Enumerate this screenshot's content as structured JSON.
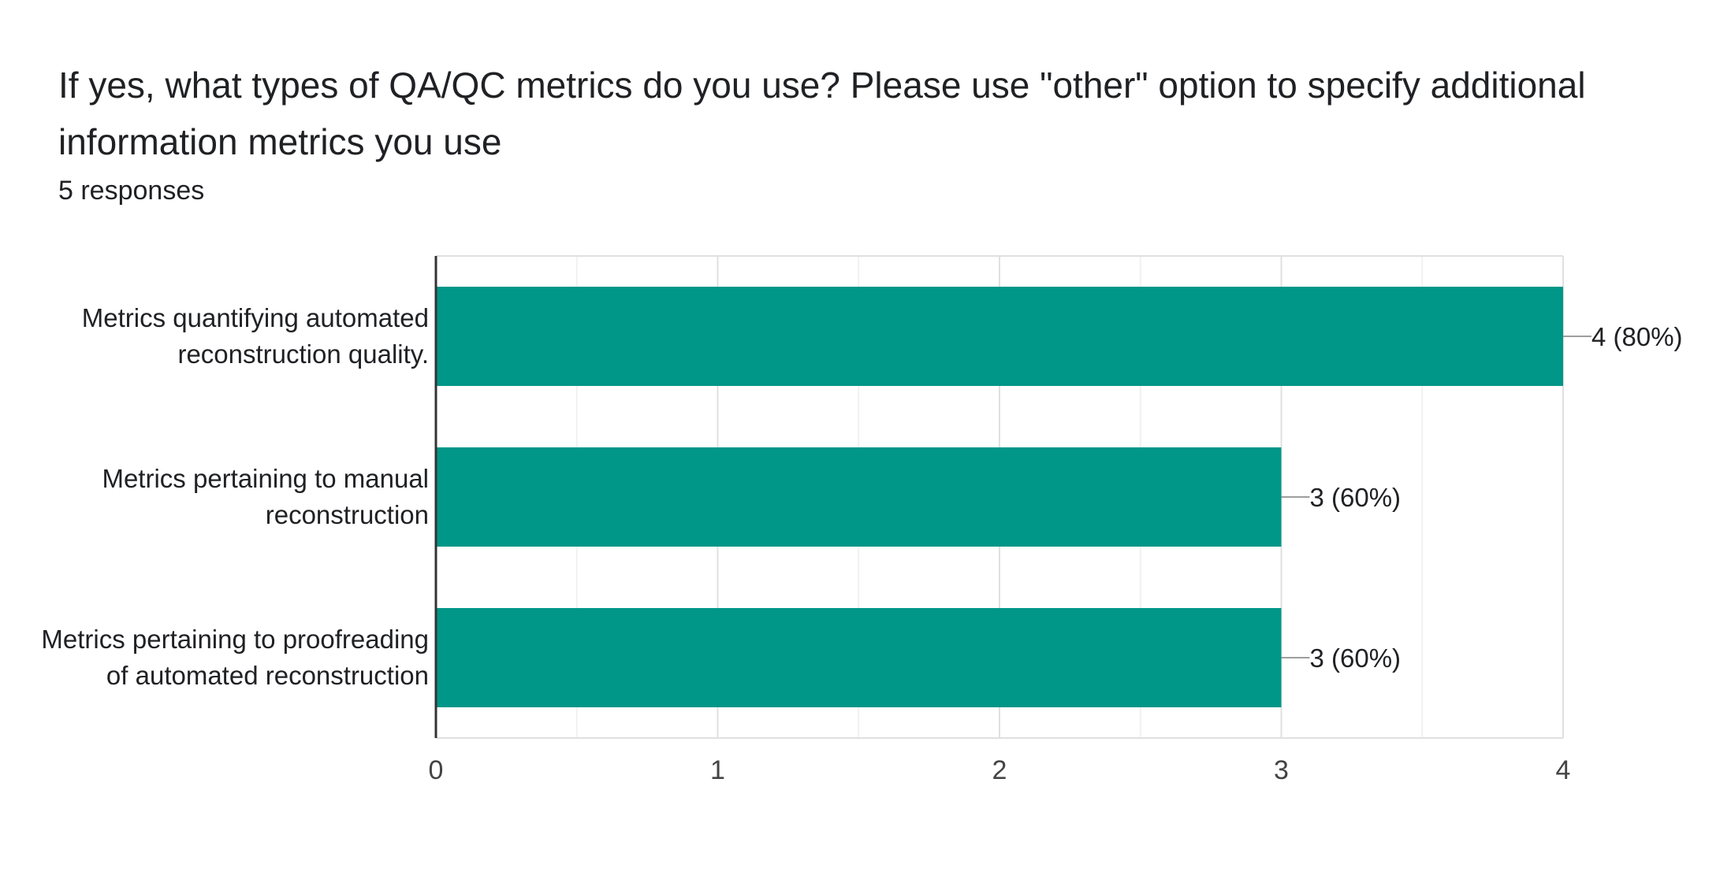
{
  "question": {
    "title": "If yes, what types of QA/QC metrics do you use?  Please use \"other\" option to specify additional information metrics you use",
    "responses_label": "5 responses"
  },
  "chart_data": {
    "type": "bar",
    "orientation": "horizontal",
    "title": "If yes, what types of QA/QC metrics do you use?  Please use \"other\" option to specify additional information metrics you use",
    "categories": [
      "Metrics quantifying automated reconstruction quality.",
      "Metrics pertaining to manual reconstruction",
      "Metrics pertaining to proofreading of automated reconstruction"
    ],
    "category_lines": [
      [
        "Metrics quantifying automated",
        "reconstruction quality."
      ],
      [
        "Metrics pertaining to manual",
        "reconstruction"
      ],
      [
        "Metrics pertaining to proofreading",
        "of automated reconstruction"
      ]
    ],
    "values": [
      4,
      3,
      3
    ],
    "data_labels": [
      "4 (80%)",
      "3 (60%)",
      "3 (60%)"
    ],
    "xlim": [
      0,
      4
    ],
    "xticks": [
      "0",
      "1",
      "2",
      "3",
      "4"
    ],
    "xlabel": "",
    "ylabel": "",
    "grid": true,
    "legend": "none",
    "colors": {
      "bar": "#009688",
      "grid_major": "#e0e0e0",
      "grid_minor": "#f1f1f1",
      "axis": "#333333",
      "leader": "#9e9e9e",
      "text": "#202124",
      "tick_text": "#444444"
    }
  }
}
